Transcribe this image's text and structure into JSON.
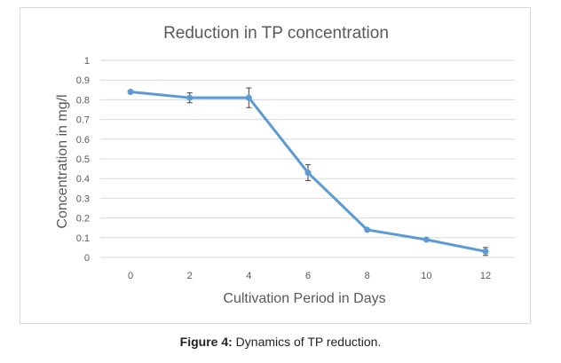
{
  "chart_data": {
    "type": "line",
    "title": "Reduction in TP concentration",
    "xlabel": "Cultivation Period in Days",
    "ylabel": "Concentration in mg/l",
    "x": [
      0,
      2,
      4,
      6,
      8,
      10,
      12
    ],
    "x_tick_labels": [
      "0",
      "2",
      "4",
      "6",
      "8",
      "10",
      "12"
    ],
    "y_ticks": [
      0,
      0.1,
      0.2,
      0.3,
      0.4,
      0.5,
      0.6,
      0.7,
      0.8,
      0.9,
      1
    ],
    "y_tick_labels": [
      "0",
      "0.1",
      "0.2",
      "0.3",
      "0.4",
      "0.5",
      "0.6",
      "0.7",
      "0.8",
      "0.9",
      "1"
    ],
    "ylim": [
      0,
      1
    ],
    "grid": true,
    "series": [
      {
        "values": [
          0.84,
          0.81,
          0.81,
          0.43,
          0.14,
          0.09,
          0.03
        ],
        "error": [
          0.0,
          0.025,
          0.05,
          0.04,
          0.0,
          0.0,
          0.02
        ],
        "color": "#5b9bd5"
      }
    ],
    "colors": {
      "grid": "#d9d9d9",
      "text": "#595959",
      "error_bar": "#404040"
    }
  },
  "caption": {
    "label": "Figure 4:",
    "text": " Dynamics of TP reduction."
  }
}
